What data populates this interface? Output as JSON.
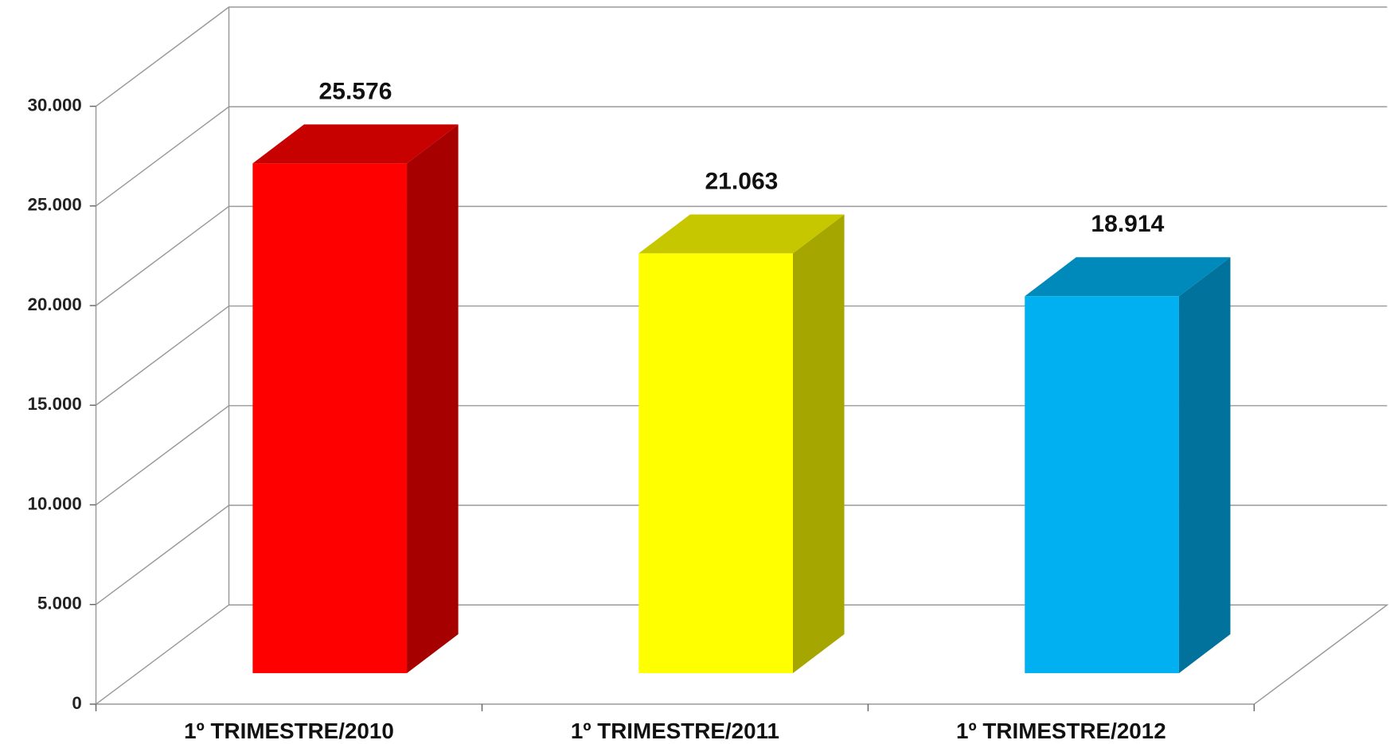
{
  "chart_data": {
    "type": "bar3d",
    "categories": [
      "1º TRIMESTRE/2010",
      "1º TRIMESTRE/2011",
      "1º TRIMESTRE/2012"
    ],
    "values": [
      25576,
      21063,
      18914
    ],
    "value_labels": [
      "25.576",
      "21.063",
      "18.914"
    ],
    "colors": [
      "#ff0000",
      "#ffff00",
      "#00b0f0"
    ],
    "ylim": [
      0,
      30000
    ],
    "yticks": [
      0,
      {
        "value": 5000,
        "label": "5.000"
      },
      {
        "value": 10000,
        "label": "10.000"
      },
      {
        "value": 15000,
        "label": "15.000"
      },
      {
        "value": 20000,
        "label": "20.000"
      },
      {
        "value": 25000,
        "label": "25.000"
      },
      {
        "value": 30000,
        "label": "30.000"
      }
    ],
    "grid": true
  }
}
